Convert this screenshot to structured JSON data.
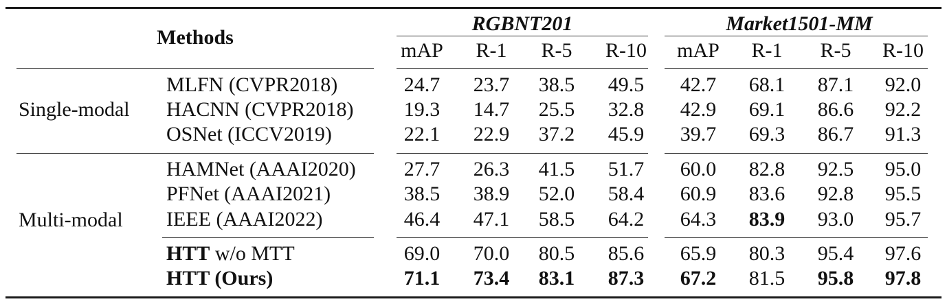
{
  "header": {
    "methods": "Methods",
    "datasets": [
      "RGBNT201",
      "Market1501-MM"
    ],
    "metrics": [
      "mAP",
      "R-1",
      "R-5",
      "R-10",
      "mAP",
      "R-1",
      "R-5",
      "R-10"
    ]
  },
  "groups": {
    "single": "Single-modal",
    "multi": "Multi-modal"
  },
  "rows": [
    {
      "bold_name": "",
      "name": "MLFN (CVPR2018)",
      "values": [
        "24.7",
        "23.7",
        "38.5",
        "49.5",
        "42.7",
        "68.1",
        "87.1",
        "92.0"
      ],
      "bold": [
        false,
        false,
        false,
        false,
        false,
        false,
        false,
        false
      ]
    },
    {
      "bold_name": "",
      "name": "HACNN (CVPR2018)",
      "values": [
        "19.3",
        "14.7",
        "25.5",
        "32.8",
        "42.9",
        "69.1",
        "86.6",
        "92.2"
      ],
      "bold": [
        false,
        false,
        false,
        false,
        false,
        false,
        false,
        false
      ]
    },
    {
      "bold_name": "",
      "name": "OSNet (ICCV2019)",
      "values": [
        "22.1",
        "22.9",
        "37.2",
        "45.9",
        "39.7",
        "69.3",
        "86.7",
        "91.3"
      ],
      "bold": [
        false,
        false,
        false,
        false,
        false,
        false,
        false,
        false
      ]
    },
    {
      "bold_name": "",
      "name": "HAMNet (AAAI2020)",
      "values": [
        "27.7",
        "26.3",
        "41.5",
        "51.7",
        "60.0",
        "82.8",
        "92.5",
        "95.0"
      ],
      "bold": [
        false,
        false,
        false,
        false,
        false,
        false,
        false,
        false
      ]
    },
    {
      "bold_name": "",
      "name": "PFNet (AAAI2021)",
      "values": [
        "38.5",
        "38.9",
        "52.0",
        "58.4",
        "60.9",
        "83.6",
        "92.8",
        "95.5"
      ],
      "bold": [
        false,
        false,
        false,
        false,
        false,
        false,
        false,
        false
      ]
    },
    {
      "bold_name": "",
      "name": "IEEE (AAAI2022)",
      "values": [
        "46.4",
        "47.1",
        "58.5",
        "64.2",
        "64.3",
        "83.9",
        "93.0",
        "95.7"
      ],
      "bold": [
        false,
        false,
        false,
        false,
        false,
        true,
        false,
        false
      ]
    },
    {
      "bold_name": "HTT",
      "name": " w/o MTT",
      "values": [
        "69.0",
        "70.0",
        "80.5",
        "85.6",
        "65.9",
        "80.3",
        "95.4",
        "97.6"
      ],
      "bold": [
        false,
        false,
        false,
        false,
        false,
        false,
        false,
        false
      ]
    },
    {
      "bold_name": "HTT (Ours)",
      "name": "",
      "values": [
        "71.1",
        "73.4",
        "83.1",
        "87.3",
        "67.2",
        "81.5",
        "95.8",
        "97.8"
      ],
      "bold": [
        true,
        true,
        true,
        true,
        true,
        false,
        true,
        true
      ]
    }
  ]
}
